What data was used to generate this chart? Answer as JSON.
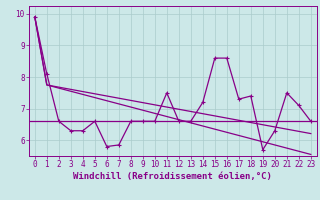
{
  "xlabel": "Windchill (Refroidissement éolien,°C)",
  "x_values": [
    0,
    1,
    2,
    3,
    4,
    5,
    6,
    7,
    8,
    9,
    10,
    11,
    12,
    13,
    14,
    15,
    16,
    17,
    18,
    19,
    20,
    21,
    22,
    23
  ],
  "line1_y": [
    9.9,
    8.1,
    6.6,
    6.3,
    6.3,
    6.6,
    5.8,
    5.85,
    6.6,
    6.6,
    6.6,
    7.5,
    6.6,
    6.6,
    7.2,
    8.6,
    8.6,
    7.3,
    7.4,
    5.7,
    6.3,
    7.5,
    7.1,
    6.6
  ],
  "line2_y": [
    9.9,
    7.75,
    7.65,
    7.55,
    7.45,
    7.35,
    7.25,
    7.15,
    7.05,
    6.95,
    6.85,
    6.75,
    6.65,
    6.55,
    6.45,
    6.35,
    6.25,
    6.15,
    6.05,
    5.95,
    5.85,
    5.75,
    5.65,
    5.55
  ],
  "line3_y": [
    9.9,
    7.75,
    7.68,
    7.61,
    7.54,
    7.47,
    7.4,
    7.33,
    7.26,
    7.19,
    7.12,
    7.05,
    6.98,
    6.91,
    6.84,
    6.77,
    6.7,
    6.63,
    6.56,
    6.49,
    6.42,
    6.35,
    6.28,
    6.21
  ],
  "hline_y": 6.6,
  "ylim": [
    5.5,
    10.25
  ],
  "xlim": [
    -0.5,
    23.5
  ],
  "line_color": "#880088",
  "bg_color": "#cce8e8",
  "grid_color": "#aacccc",
  "tick_fontsize": 5.5,
  "label_fontsize": 6.5,
  "yticks": [
    6,
    7,
    8,
    9,
    10
  ],
  "figwidth": 3.2,
  "figheight": 2.0,
  "dpi": 100
}
